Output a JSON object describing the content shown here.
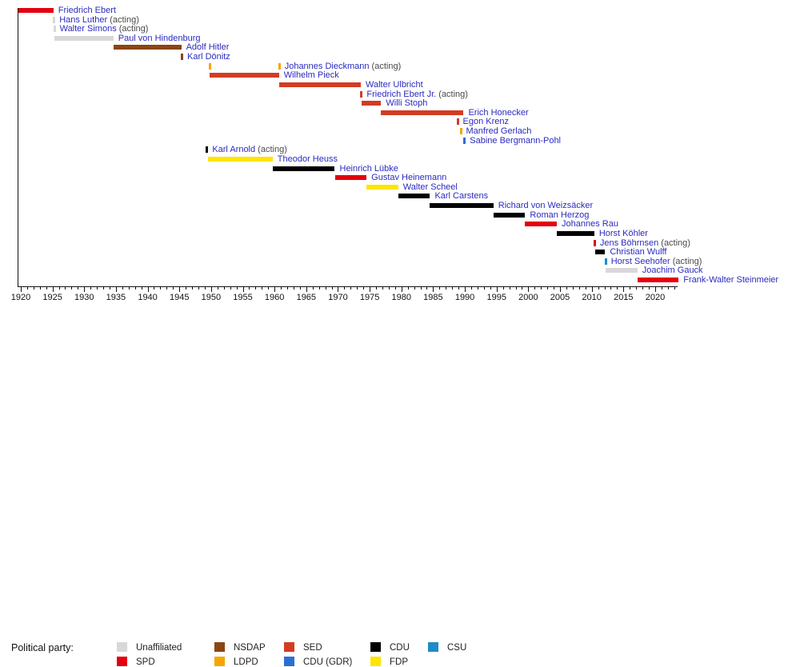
{
  "legend": {
    "title": "Political party:",
    "items": [
      {
        "label": "Unaffiliated",
        "party": "unaffiliated",
        "col": 0,
        "row": 0
      },
      {
        "label": "SPD",
        "party": "spd",
        "col": 0,
        "row": 1
      },
      {
        "label": "NSDAP",
        "party": "nsdap",
        "col": 1,
        "row": 0
      },
      {
        "label": "LDPD",
        "party": "ldpd",
        "col": 1,
        "row": 1
      },
      {
        "label": "SED",
        "party": "sed",
        "col": 2,
        "row": 0
      },
      {
        "label": "CDU (GDR)",
        "party": "cdu_gdr",
        "col": 2,
        "row": 1
      },
      {
        "label": "CDU",
        "party": "cdu",
        "col": 3,
        "row": 0
      },
      {
        "label": "FDP",
        "party": "fdp",
        "col": 3,
        "row": 1
      },
      {
        "label": "CSU",
        "party": "csu",
        "col": 4,
        "row": 0
      }
    ]
  },
  "chart_data": {
    "type": "timeline",
    "x_axis": {
      "range": [
        1919.5,
        2023.5
      ],
      "major_tick_years": [
        1920,
        1925,
        1930,
        1935,
        1940,
        1945,
        1950,
        1955,
        1960,
        1965,
        1970,
        1975,
        1980,
        1985,
        1990,
        1995,
        2000,
        2005,
        2010,
        2015,
        2020
      ],
      "tick_labels": [
        "1920",
        "1925",
        "1930",
        "1935",
        "1940",
        "1945",
        "1950",
        "1955",
        "1960",
        "1965",
        "1970",
        "1975",
        "1980",
        "1985",
        "1990",
        "1995",
        "2000",
        "2005",
        "2010",
        "2015",
        "2020"
      ],
      "minor_tick_every": 1
    },
    "party_colors": {
      "unaffiliated": "#d8d8d8",
      "spd": "#e3000f",
      "nsdap": "#8b4513",
      "ldpd": "#f7a500",
      "sed": "#d23c22",
      "cdu_gdr": "#2b6fd4",
      "cdu": "#000000",
      "fdp": "#ffe500",
      "csu": "#1e8bc8"
    },
    "label_color": "#2a2ac0",
    "acting_suffix": "(acting)",
    "people": [
      {
        "name": "Friedrich Ebert",
        "acting": false,
        "party": "spd",
        "display": "bar",
        "terms": [
          {
            "start": 1919.5,
            "end": 1925.15
          }
        ]
      },
      {
        "name": "Hans Luther",
        "acting": true,
        "party": "unaffiliated",
        "display": "tick",
        "terms": [
          {
            "start": 1925.2,
            "end": 1925.25
          }
        ]
      },
      {
        "name": "Walter Simons",
        "acting": true,
        "party": "unaffiliated",
        "display": "tick",
        "terms": [
          {
            "start": 1925.25,
            "end": 1925.35
          }
        ]
      },
      {
        "name": "Paul von Hindenburg",
        "acting": false,
        "party": "unaffiliated",
        "display": "bar",
        "terms": [
          {
            "start": 1925.35,
            "end": 1934.6
          }
        ]
      },
      {
        "name": "Adolf Hitler",
        "acting": false,
        "party": "nsdap",
        "display": "bar",
        "terms": [
          {
            "start": 1934.6,
            "end": 1945.3
          }
        ]
      },
      {
        "name": "Karl Dönitz",
        "acting": false,
        "party": "nsdap",
        "display": "tick",
        "terms": [
          {
            "start": 1945.35,
            "end": 1945.4
          }
        ]
      },
      {
        "name": "Johannes Dieckmann",
        "acting": true,
        "party": "ldpd",
        "display": "tick",
        "terms": [
          {
            "start": 1949.8,
            "end": 1949.85
          },
          {
            "start": 1960.7,
            "end": 1960.75
          }
        ]
      },
      {
        "name": "Wilhelm Pieck",
        "acting": false,
        "party": "sed",
        "display": "bar",
        "terms": [
          {
            "start": 1949.8,
            "end": 1960.7
          }
        ]
      },
      {
        "name": "Walter Ulbricht",
        "acting": false,
        "party": "sed",
        "display": "bar",
        "terms": [
          {
            "start": 1960.75,
            "end": 1973.6
          }
        ]
      },
      {
        "name": "Friedrich Ebert Jr.",
        "acting": true,
        "party": "sed",
        "display": "tick",
        "terms": [
          {
            "start": 1973.65,
            "end": 1973.75
          }
        ]
      },
      {
        "name": "Willi Stoph",
        "acting": false,
        "party": "sed",
        "display": "bar",
        "terms": [
          {
            "start": 1973.75,
            "end": 1976.8
          }
        ]
      },
      {
        "name": "Erich Honecker",
        "acting": false,
        "party": "sed",
        "display": "bar",
        "terms": [
          {
            "start": 1976.8,
            "end": 1989.8
          }
        ]
      },
      {
        "name": "Egon Krenz",
        "acting": false,
        "party": "sed",
        "display": "tick",
        "terms": [
          {
            "start": 1988.8,
            "end": 1989.0
          }
        ]
      },
      {
        "name": "Manfred Gerlach",
        "acting": false,
        "party": "ldpd",
        "display": "tick",
        "terms": [
          {
            "start": 1989.3,
            "end": 1989.7
          }
        ]
      },
      {
        "name": "Sabine Bergmann-Pohl",
        "acting": false,
        "party": "cdu_gdr",
        "display": "tick",
        "terms": [
          {
            "start": 1989.9,
            "end": 1990.4
          }
        ]
      },
      {
        "name": "Karl Arnold",
        "acting": true,
        "party": "cdu",
        "display": "tick",
        "terms": [
          {
            "start": 1949.3,
            "end": 1949.4
          }
        ]
      },
      {
        "name": "Theodor Heuss",
        "acting": false,
        "party": "fdp",
        "display": "bar",
        "terms": [
          {
            "start": 1949.55,
            "end": 1959.7
          }
        ]
      },
      {
        "name": "Heinrich Lübke",
        "acting": false,
        "party": "cdu",
        "display": "bar",
        "terms": [
          {
            "start": 1959.7,
            "end": 1969.5
          }
        ]
      },
      {
        "name": "Gustav Heinemann",
        "acting": false,
        "party": "spd",
        "display": "bar",
        "terms": [
          {
            "start": 1969.5,
            "end": 1974.5
          }
        ]
      },
      {
        "name": "Walter Scheel",
        "acting": false,
        "party": "fdp",
        "display": "bar",
        "terms": [
          {
            "start": 1974.5,
            "end": 1979.5
          }
        ]
      },
      {
        "name": "Karl Carstens",
        "acting": false,
        "party": "cdu",
        "display": "bar",
        "terms": [
          {
            "start": 1979.5,
            "end": 1984.5
          }
        ]
      },
      {
        "name": "Richard von Weizsäcker",
        "acting": false,
        "party": "cdu",
        "display": "bar",
        "terms": [
          {
            "start": 1984.5,
            "end": 1994.5
          }
        ]
      },
      {
        "name": "Roman Herzog",
        "acting": false,
        "party": "cdu",
        "display": "bar",
        "terms": [
          {
            "start": 1994.5,
            "end": 1999.5
          }
        ]
      },
      {
        "name": "Johannes Rau",
        "acting": false,
        "party": "spd",
        "display": "bar",
        "terms": [
          {
            "start": 1999.5,
            "end": 2004.5
          }
        ]
      },
      {
        "name": "Horst Köhler",
        "acting": false,
        "party": "cdu",
        "display": "bar",
        "terms": [
          {
            "start": 2004.5,
            "end": 2010.4
          }
        ]
      },
      {
        "name": "Jens Böhrnsen",
        "acting": true,
        "party": "spd",
        "display": "tick",
        "terms": [
          {
            "start": 2010.4,
            "end": 2010.5
          }
        ]
      },
      {
        "name": "Christian Wulff",
        "acting": false,
        "party": "cdu",
        "display": "bar",
        "terms": [
          {
            "start": 2010.5,
            "end": 2012.1
          }
        ]
      },
      {
        "name": "Horst Seehofer",
        "acting": true,
        "party": "csu",
        "display": "tick",
        "terms": [
          {
            "start": 2012.15,
            "end": 2012.25
          }
        ]
      },
      {
        "name": "Joachim Gauck",
        "acting": false,
        "party": "unaffiliated",
        "display": "bar",
        "terms": [
          {
            "start": 2012.2,
            "end": 2017.2
          }
        ]
      },
      {
        "name": "Frank-Walter Steinmeier",
        "acting": false,
        "party": "spd",
        "display": "bar",
        "terms": [
          {
            "start": 2017.2,
            "end": 2023.7
          }
        ]
      }
    ]
  }
}
